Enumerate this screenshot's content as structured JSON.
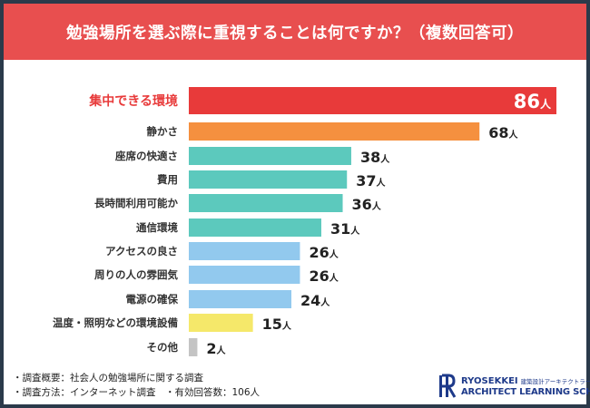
{
  "header": {
    "title": "勉強場所を選ぶ際に重視することは何ですか？（複数回答可）"
  },
  "chart_data": {
    "type": "bar",
    "orientation": "horizontal",
    "categories": [
      "集中できる環境",
      "静かさ",
      "座席の快適さ",
      "費用",
      "長時間利用可能か",
      "通信環境",
      "アクセスの良さ",
      "周りの人の雰囲気",
      "電源の確保",
      "温度・照明などの環境設備",
      "その他"
    ],
    "values": [
      86,
      68,
      38,
      37,
      36,
      31,
      26,
      26,
      24,
      15,
      2
    ],
    "unit": "人",
    "colors": [
      "#e83a3a",
      "#f5903f",
      "#5cc9bd",
      "#5cc9bd",
      "#5cc9bd",
      "#5cc9bd",
      "#92c9ee",
      "#92c9ee",
      "#92c9ee",
      "#f5e86a",
      "#c4c4c4"
    ],
    "highlight_label_color": "#e83a3a",
    "grid": false
  },
  "footer": {
    "notes": [
      "・調査概要：社会人の勉強場所に関する調査",
      "・調査方法：インターネット調査　・有効回答数：106人"
    ]
  },
  "logo": {
    "line1": "RYOSEKKEI",
    "line1_sub": "建築設計アーキテクトラーニング",
    "line2": "ARCHITECT LEARNING SCHOOL",
    "color": "#1e3a8a"
  }
}
